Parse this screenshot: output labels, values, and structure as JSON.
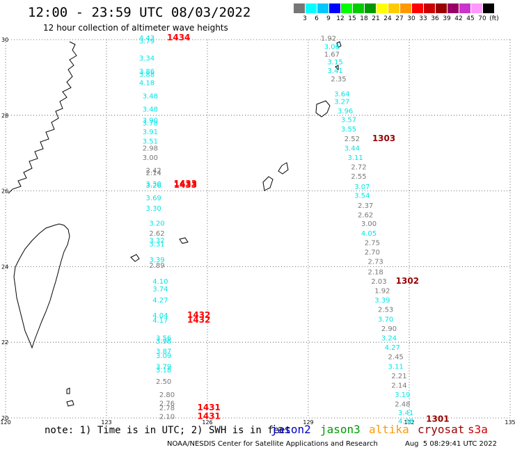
{
  "header": {
    "title": "12:00 - 23:59 UTC 08/03/2022",
    "subtitle": "12 hour collection of altimeter wave heights"
  },
  "legend": {
    "colors": [
      "#777777",
      "#00ffff",
      "#00c8ff",
      "#0000ff",
      "#00ff00",
      "#00cc00",
      "#009900",
      "#ffff00",
      "#ffcc00",
      "#ff9900",
      "#ff0000",
      "#cc0000",
      "#990000",
      "#990066",
      "#cc33cc",
      "#ff99ff",
      "#000000"
    ],
    "labels": [
      "3",
      "6",
      "9",
      "12",
      "15",
      "18",
      "21",
      "24",
      "27",
      "30",
      "33",
      "36",
      "39",
      "42",
      "45",
      "70",
      "(ft)"
    ]
  },
  "map": {
    "lon_range": [
      120,
      135
    ],
    "lat_range": [
      20,
      30
    ],
    "lon_ticks": [
      "120",
      "123",
      "126",
      "129",
      "132",
      "135"
    ],
    "lat_ticks": [
      "20",
      "22",
      "24",
      "26",
      "28",
      "30"
    ],
    "grid": "dotted"
  },
  "colors": {
    "low": "#00e5e5",
    "mid": "#777777",
    "pass_bright": "#ff0000",
    "pass_dark": "#990000"
  },
  "track_west": [
    {
      "lat": 29.98,
      "lon": 124.2,
      "v": "4.43",
      "c": "low"
    },
    {
      "lat": 29.9,
      "lon": 124.2,
      "v": "3.79",
      "c": "low"
    },
    {
      "lat": 29.45,
      "lon": 124.2,
      "v": "3.34",
      "c": "low"
    },
    {
      "lat": 29.1,
      "lon": 124.2,
      "v": "3.86",
      "c": "low"
    },
    {
      "lat": 29.02,
      "lon": 124.2,
      "v": "3.88",
      "c": "low"
    },
    {
      "lat": 28.8,
      "lon": 124.2,
      "v": "4.18",
      "c": "low"
    },
    {
      "lat": 28.45,
      "lon": 124.3,
      "v": "3.48",
      "c": "low"
    },
    {
      "lat": 28.1,
      "lon": 124.3,
      "v": "3.48",
      "c": "low"
    },
    {
      "lat": 27.8,
      "lon": 124.3,
      "v": "3.90",
      "c": "low"
    },
    {
      "lat": 27.73,
      "lon": 124.3,
      "v": "3.78",
      "c": "low"
    },
    {
      "lat": 27.5,
      "lon": 124.3,
      "v": "3.91",
      "c": "low"
    },
    {
      "lat": 27.25,
      "lon": 124.3,
      "v": "3.51",
      "c": "low"
    },
    {
      "lat": 27.07,
      "lon": 124.3,
      "v": "2.98",
      "c": "mid"
    },
    {
      "lat": 26.82,
      "lon": 124.3,
      "v": "3.00",
      "c": "mid"
    },
    {
      "lat": 26.48,
      "lon": 124.4,
      "v": "2.42",
      "c": "mid"
    },
    {
      "lat": 26.42,
      "lon": 124.4,
      "v": "2.14",
      "c": "mid"
    },
    {
      "lat": 26.12,
      "lon": 124.4,
      "v": "3.30",
      "c": "low"
    },
    {
      "lat": 26.08,
      "lon": 124.4,
      "v": "3.26",
      "c": "low"
    },
    {
      "lat": 25.75,
      "lon": 124.4,
      "v": "3.69",
      "c": "low"
    },
    {
      "lat": 25.48,
      "lon": 124.4,
      "v": "3.30",
      "c": "low"
    },
    {
      "lat": 25.08,
      "lon": 124.5,
      "v": "3.20",
      "c": "low"
    },
    {
      "lat": 24.82,
      "lon": 124.5,
      "v": "2.62",
      "c": "mid"
    },
    {
      "lat": 24.63,
      "lon": 124.5,
      "v": "3.32",
      "c": "low"
    },
    {
      "lat": 24.53,
      "lon": 124.5,
      "v": "3.31",
      "c": "low"
    },
    {
      "lat": 24.12,
      "lon": 124.5,
      "v": "3.39",
      "c": "low"
    },
    {
      "lat": 23.97,
      "lon": 124.5,
      "v": "2.89",
      "c": "mid"
    },
    {
      "lat": 23.55,
      "lon": 124.6,
      "v": "4.10",
      "c": "low"
    },
    {
      "lat": 23.35,
      "lon": 124.6,
      "v": "3.74",
      "c": "low"
    },
    {
      "lat": 23.05,
      "lon": 124.6,
      "v": "4.27",
      "c": "low"
    },
    {
      "lat": 22.65,
      "lon": 124.6,
      "v": "4.04",
      "c": "low"
    },
    {
      "lat": 22.52,
      "lon": 124.6,
      "v": "4.17",
      "c": "low"
    },
    {
      "lat": 22.05,
      "lon": 124.7,
      "v": "3.56",
      "c": "low"
    },
    {
      "lat": 21.97,
      "lon": 124.7,
      "v": "3.96",
      "c": "low"
    },
    {
      "lat": 21.7,
      "lon": 124.7,
      "v": "3.87",
      "c": "low"
    },
    {
      "lat": 21.58,
      "lon": 124.7,
      "v": "3.09",
      "c": "low"
    },
    {
      "lat": 21.3,
      "lon": 124.7,
      "v": "3.79",
      "c": "low"
    },
    {
      "lat": 21.2,
      "lon": 124.7,
      "v": "3.18",
      "c": "low"
    },
    {
      "lat": 20.9,
      "lon": 124.7,
      "v": "2.50",
      "c": "mid"
    },
    {
      "lat": 20.55,
      "lon": 124.8,
      "v": "2.80",
      "c": "mid"
    },
    {
      "lat": 20.32,
      "lon": 124.8,
      "v": "2.76",
      "c": "mid"
    },
    {
      "lat": 20.2,
      "lon": 124.8,
      "v": "2.78",
      "c": "mid"
    },
    {
      "lat": 19.97,
      "lon": 124.8,
      "v": "2.10",
      "c": "mid"
    }
  ],
  "track_east": [
    {
      "lat": 29.97,
      "lon": 129.6,
      "v": "1.92",
      "c": "mid"
    },
    {
      "lat": 29.75,
      "lon": 129.7,
      "v": "3.06",
      "c": "low"
    },
    {
      "lat": 29.55,
      "lon": 129.7,
      "v": "1.67",
      "c": "mid"
    },
    {
      "lat": 29.35,
      "lon": 129.8,
      "v": "3.15",
      "c": "low"
    },
    {
      "lat": 29.12,
      "lon": 129.8,
      "v": "3.41",
      "c": "low"
    },
    {
      "lat": 28.9,
      "lon": 129.9,
      "v": "2.35",
      "c": "mid"
    },
    {
      "lat": 28.5,
      "lon": 130.0,
      "v": "3.64",
      "c": "low"
    },
    {
      "lat": 28.3,
      "lon": 130.0,
      "v": "3.27",
      "c": "low"
    },
    {
      "lat": 28.05,
      "lon": 130.1,
      "v": "3.96",
      "c": "low"
    },
    {
      "lat": 27.82,
      "lon": 130.2,
      "v": "3.57",
      "c": "low"
    },
    {
      "lat": 27.57,
      "lon": 130.2,
      "v": "3.55",
      "c": "low"
    },
    {
      "lat": 27.32,
      "lon": 130.3,
      "v": "2.52",
      "c": "mid"
    },
    {
      "lat": 27.07,
      "lon": 130.3,
      "v": "3.44",
      "c": "low"
    },
    {
      "lat": 26.82,
      "lon": 130.4,
      "v": "3.11",
      "c": "low"
    },
    {
      "lat": 26.57,
      "lon": 130.5,
      "v": "2.72",
      "c": "mid"
    },
    {
      "lat": 26.32,
      "lon": 130.5,
      "v": "2.55",
      "c": "mid"
    },
    {
      "lat": 26.05,
      "lon": 130.6,
      "v": "3.07",
      "c": "low"
    },
    {
      "lat": 25.82,
      "lon": 130.6,
      "v": "3.54",
      "c": "low"
    },
    {
      "lat": 25.55,
      "lon": 130.7,
      "v": "2.37",
      "c": "mid"
    },
    {
      "lat": 25.3,
      "lon": 130.7,
      "v": "2.62",
      "c": "mid"
    },
    {
      "lat": 25.07,
      "lon": 130.8,
      "v": "3.00",
      "c": "mid"
    },
    {
      "lat": 24.82,
      "lon": 130.8,
      "v": "4.05",
      "c": "low"
    },
    {
      "lat": 24.57,
      "lon": 130.9,
      "v": "2.75",
      "c": "mid"
    },
    {
      "lat": 24.32,
      "lon": 130.9,
      "v": "2.70",
      "c": "mid"
    },
    {
      "lat": 24.07,
      "lon": 131.0,
      "v": "2.73",
      "c": "mid"
    },
    {
      "lat": 23.8,
      "lon": 131.0,
      "v": "2.18",
      "c": "mid"
    },
    {
      "lat": 23.55,
      "lon": 131.1,
      "v": "2.03",
      "c": "mid"
    },
    {
      "lat": 23.3,
      "lon": 131.2,
      "v": "1.92",
      "c": "mid"
    },
    {
      "lat": 23.05,
      "lon": 131.2,
      "v": "3.39",
      "c": "low"
    },
    {
      "lat": 22.8,
      "lon": 131.3,
      "v": "2.53",
      "c": "mid"
    },
    {
      "lat": 22.55,
      "lon": 131.3,
      "v": "3.70",
      "c": "low"
    },
    {
      "lat": 22.3,
      "lon": 131.4,
      "v": "2.90",
      "c": "mid"
    },
    {
      "lat": 22.05,
      "lon": 131.4,
      "v": "3.24",
      "c": "low"
    },
    {
      "lat": 21.8,
      "lon": 131.5,
      "v": "4.27",
      "c": "low"
    },
    {
      "lat": 21.55,
      "lon": 131.6,
      "v": "2.45",
      "c": "mid"
    },
    {
      "lat": 21.3,
      "lon": 131.6,
      "v": "3.11",
      "c": "low"
    },
    {
      "lat": 21.05,
      "lon": 131.7,
      "v": "2.21",
      "c": "mid"
    },
    {
      "lat": 20.8,
      "lon": 131.7,
      "v": "2.14",
      "c": "mid"
    },
    {
      "lat": 20.55,
      "lon": 131.8,
      "v": "3.19",
      "c": "low"
    },
    {
      "lat": 20.3,
      "lon": 131.8,
      "v": "2.48",
      "c": "mid"
    },
    {
      "lat": 20.07,
      "lon": 131.9,
      "v": "3.41",
      "c": "low"
    },
    {
      "lat": 19.85,
      "lon": 131.9,
      "v": "4.38",
      "c": "low"
    }
  ],
  "pass_labels": [
    {
      "lat": 29.98,
      "lon": 124.8,
      "v": "1434",
      "c": "pass_bright"
    },
    {
      "lat": 26.12,
      "lon": 125.0,
      "v": "1433",
      "c": "pass_bright"
    },
    {
      "lat": 26.08,
      "lon": 125.0,
      "v": "1433",
      "c": "pass_bright"
    },
    {
      "lat": 22.65,
      "lon": 125.4,
      "v": "1432",
      "c": "pass_bright"
    },
    {
      "lat": 22.52,
      "lon": 125.4,
      "v": "1432",
      "c": "pass_bright"
    },
    {
      "lat": 20.2,
      "lon": 125.7,
      "v": "1431",
      "c": "pass_bright"
    },
    {
      "lat": 19.97,
      "lon": 125.7,
      "v": "1431",
      "c": "pass_bright"
    },
    {
      "lat": 27.32,
      "lon": 130.9,
      "v": "1303",
      "c": "pass_dark"
    },
    {
      "lat": 23.55,
      "lon": 131.6,
      "v": "1302",
      "c": "pass_dark"
    },
    {
      "lat": 19.9,
      "lon": 132.5,
      "v": "1301",
      "c": "pass_dark"
    }
  ],
  "footer": {
    "note": "note: 1) Time is in UTC; 2) SWH is in feet",
    "missions": [
      {
        "label": "jason2",
        "color": "#0000cc"
      },
      {
        "label": "jason3",
        "color": "#009900"
      },
      {
        "label": "altika",
        "color": "#ff9900"
      },
      {
        "label": "cryosat",
        "color": "#990000"
      },
      {
        "label": "s3a",
        "color": "#cc0000"
      }
    ],
    "credit": "NOAA/NESDIS Center for Satellite Applications and Research",
    "timestamp": "Aug  5 08:29:41 UTC 2022"
  }
}
